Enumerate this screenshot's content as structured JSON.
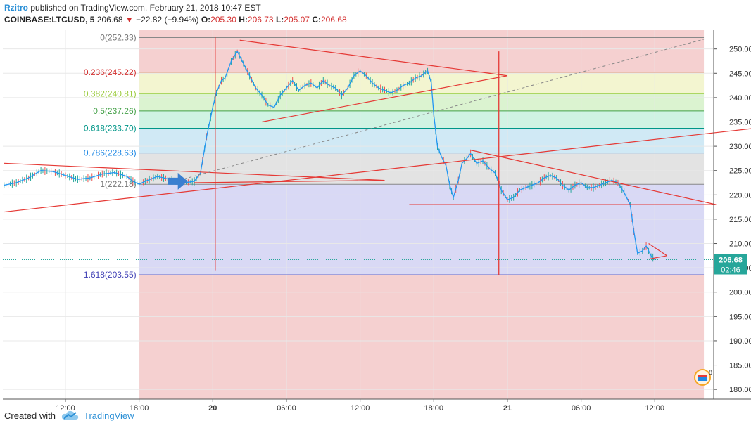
{
  "header": {
    "author": "Rzitro",
    "published_text": "published on TradingView.com, February 21, 2018 10:47 EST",
    "symbol": "COINBASE:LTCUSD, 5",
    "last": "206.68",
    "change": "−22.82 (−9.94%)",
    "open_label": "O:",
    "open": "205.30",
    "high_label": "H:",
    "high": "206.73",
    "low_label": "L:",
    "low": "205.07",
    "close_label": "C:",
    "close": "206.68"
  },
  "footer": {
    "created_with": "Created with",
    "brand": "TradingView"
  },
  "price_badge": {
    "price": "206.68",
    "countdown": "02:46"
  },
  "colors": {
    "up": "#26a69a",
    "down": "#ef5350",
    "trend": "#e53935",
    "ma": "#2196f3",
    "price_line": "#26a69a"
  },
  "chart_data": {
    "type": "line",
    "title": "COINBASE:LTCUSD, 5",
    "ylim": [
      178,
      254
    ],
    "y_ticks": [
      180.0,
      185.0,
      190.0,
      195.0,
      200.0,
      205.0,
      210.0,
      215.0,
      220.0,
      225.0,
      230.0,
      235.0,
      240.0,
      245.0,
      250.0
    ],
    "x_ticks": [
      {
        "t": 12,
        "label": "12:00"
      },
      {
        "t": 18,
        "label": "18:00"
      },
      {
        "t": 24,
        "label": "20"
      },
      {
        "t": 30,
        "label": "06:00"
      },
      {
        "t": 36,
        "label": "12:00"
      },
      {
        "t": 42,
        "label": "18:00"
      },
      {
        "t": 48,
        "label": "21"
      },
      {
        "t": 54,
        "label": "06:00"
      },
      {
        "t": 60,
        "label": "12:00"
      }
    ],
    "xlim": [
      6.9,
      64.8
    ],
    "price_series": [
      [
        7.0,
        222.0
      ],
      [
        8.0,
        222.5
      ],
      [
        9.0,
        223.5
      ],
      [
        10.0,
        225.0
      ],
      [
        11.0,
        224.8
      ],
      [
        12.0,
        224.0
      ],
      [
        13.0,
        223.2
      ],
      [
        14.0,
        223.5
      ],
      [
        15.0,
        224.3
      ],
      [
        16.0,
        224.6
      ],
      [
        17.0,
        223.8
      ],
      [
        17.5,
        222.8
      ],
      [
        18.0,
        222.2
      ],
      [
        18.5,
        222.8
      ],
      [
        19.0,
        223.3
      ],
      [
        19.5,
        223.8
      ],
      [
        20.0,
        223.5
      ],
      [
        20.5,
        223.2
      ],
      [
        21.0,
        222.8
      ],
      [
        21.5,
        222.6
      ],
      [
        22.0,
        222.6
      ],
      [
        22.5,
        222.8
      ],
      [
        23.0,
        224.5
      ],
      [
        23.5,
        232.0
      ],
      [
        24.0,
        238.0
      ],
      [
        24.3,
        241.0
      ],
      [
        24.7,
        243.5
      ],
      [
        25.0,
        244.0
      ],
      [
        25.5,
        247.5
      ],
      [
        26.0,
        249.5
      ],
      [
        26.5,
        247.0
      ],
      [
        27.0,
        244.5
      ],
      [
        27.5,
        242.0
      ],
      [
        28.0,
        240.5
      ],
      [
        28.5,
        238.5
      ],
      [
        29.0,
        238.0
      ],
      [
        29.5,
        240.5
      ],
      [
        30.0,
        242.0
      ],
      [
        30.5,
        243.5
      ],
      [
        31.0,
        241.5
      ],
      [
        31.5,
        242.5
      ],
      [
        32.0,
        243.0
      ],
      [
        32.5,
        242.0
      ],
      [
        33.0,
        243.5
      ],
      [
        33.5,
        242.5
      ],
      [
        34.0,
        242.0
      ],
      [
        34.5,
        240.5
      ],
      [
        35.0,
        242.0
      ],
      [
        35.5,
        244.5
      ],
      [
        36.0,
        245.5
      ],
      [
        36.5,
        244.5
      ],
      [
        37.0,
        243.0
      ],
      [
        37.5,
        242.0
      ],
      [
        38.0,
        241.5
      ],
      [
        38.5,
        241.0
      ],
      [
        39.0,
        241.5
      ],
      [
        39.5,
        242.5
      ],
      [
        40.0,
        243.0
      ],
      [
        40.5,
        244.0
      ],
      [
        41.0,
        244.5
      ],
      [
        41.5,
        245.5
      ],
      [
        41.8,
        243.0
      ],
      [
        42.0,
        236.5
      ],
      [
        42.3,
        230.0
      ],
      [
        42.6,
        228.0
      ],
      [
        43.0,
        226.0
      ],
      [
        43.3,
        222.0
      ],
      [
        43.6,
        219.5
      ],
      [
        44.0,
        223.0
      ],
      [
        44.3,
        226.5
      ],
      [
        44.7,
        227.5
      ],
      [
        45.0,
        228.5
      ],
      [
        45.5,
        226.5
      ],
      [
        46.0,
        227.0
      ],
      [
        46.5,
        225.5
      ],
      [
        47.0,
        224.5
      ],
      [
        47.5,
        221.0
      ],
      [
        48.0,
        219.0
      ],
      [
        48.5,
        219.5
      ],
      [
        49.0,
        221.0
      ],
      [
        49.5,
        221.5
      ],
      [
        50.0,
        222.0
      ],
      [
        50.5,
        222.5
      ],
      [
        51.0,
        223.5
      ],
      [
        51.5,
        224.0
      ],
      [
        52.0,
        223.5
      ],
      [
        52.5,
        222.0
      ],
      [
        53.0,
        221.0
      ],
      [
        53.5,
        222.0
      ],
      [
        54.0,
        222.5
      ],
      [
        54.5,
        221.5
      ],
      [
        55.0,
        221.5
      ],
      [
        55.5,
        222.0
      ],
      [
        56.0,
        222.5
      ],
      [
        56.5,
        223.0
      ],
      [
        57.0,
        222.5
      ],
      [
        57.5,
        220.5
      ],
      [
        58.0,
        218.0
      ],
      [
        58.3,
        212.5
      ],
      [
        58.6,
        208.0
      ],
      [
        59.0,
        208.5
      ],
      [
        59.3,
        209.5
      ],
      [
        59.7,
        207.5
      ],
      [
        60.0,
        206.7
      ]
    ],
    "fib_levels": [
      {
        "ratio": "0",
        "price": 252.33,
        "label": "0(252.33)"
      },
      {
        "ratio": "0.236",
        "price": 245.22,
        "label": "0.236(245.22)"
      },
      {
        "ratio": "0.382",
        "price": 240.81,
        "label": "0.382(240.81)"
      },
      {
        "ratio": "0.5",
        "price": 237.26,
        "label": "0.5(237.26)"
      },
      {
        "ratio": "0.618",
        "price": 233.7,
        "label": "0.618(233.70)"
      },
      {
        "ratio": "0.786",
        "price": 228.63,
        "label": "0.786(228.63)"
      },
      {
        "ratio": "1",
        "price": 222.18,
        "label": "1(222.18)"
      },
      {
        "ratio": "1.618",
        "price": 203.55,
        "label": "1.618(203.55)"
      }
    ],
    "fib_range_t": [
      18.0,
      64.0
    ],
    "trendlines": [
      {
        "name": "desc-wedge-upper",
        "points": [
          [
            26.2,
            251.8
          ],
          [
            48.0,
            244.5
          ]
        ]
      },
      {
        "name": "desc-wedge-lower",
        "points": [
          [
            28.0,
            235.0
          ],
          [
            48.0,
            244.5
          ]
        ]
      },
      {
        "name": "lower-left-triangle-top",
        "points": [
          [
            7.0,
            226.5
          ],
          [
            38.0,
            223.0
          ]
        ]
      },
      {
        "name": "lower-left-triangle-bottom",
        "points": [
          [
            22.5,
            222.5
          ],
          [
            38.0,
            223.0
          ]
        ]
      },
      {
        "name": "long-support",
        "points": [
          [
            7.0,
            216.5
          ],
          [
            71.0,
            234.5
          ]
        ]
      },
      {
        "name": "right-wedge-upper",
        "points": [
          [
            45.0,
            229.2
          ],
          [
            65.0,
            218.0
          ]
        ]
      },
      {
        "name": "right-wedge-lower",
        "points": [
          [
            40.0,
            218.0
          ],
          [
            65.0,
            218.0
          ]
        ]
      },
      {
        "name": "small-triangle-top",
        "points": [
          [
            59.5,
            210.0
          ],
          [
            61.0,
            207.5
          ]
        ]
      },
      {
        "name": "small-triangle-bottom",
        "points": [
          [
            59.5,
            206.8
          ],
          [
            61.0,
            207.5
          ]
        ]
      }
    ],
    "dashed_line": {
      "points": [
        [
          20.5,
          222.5
        ],
        [
          64.0,
          252.0
        ]
      ]
    },
    "vertical_lines": [
      {
        "t": 24.2,
        "from": 252.5,
        "to": 204.5
      },
      {
        "t": 47.3,
        "from": 249.5,
        "to": 203.5
      }
    ],
    "arrow": {
      "t": 21.5,
      "price": 222.8
    }
  }
}
